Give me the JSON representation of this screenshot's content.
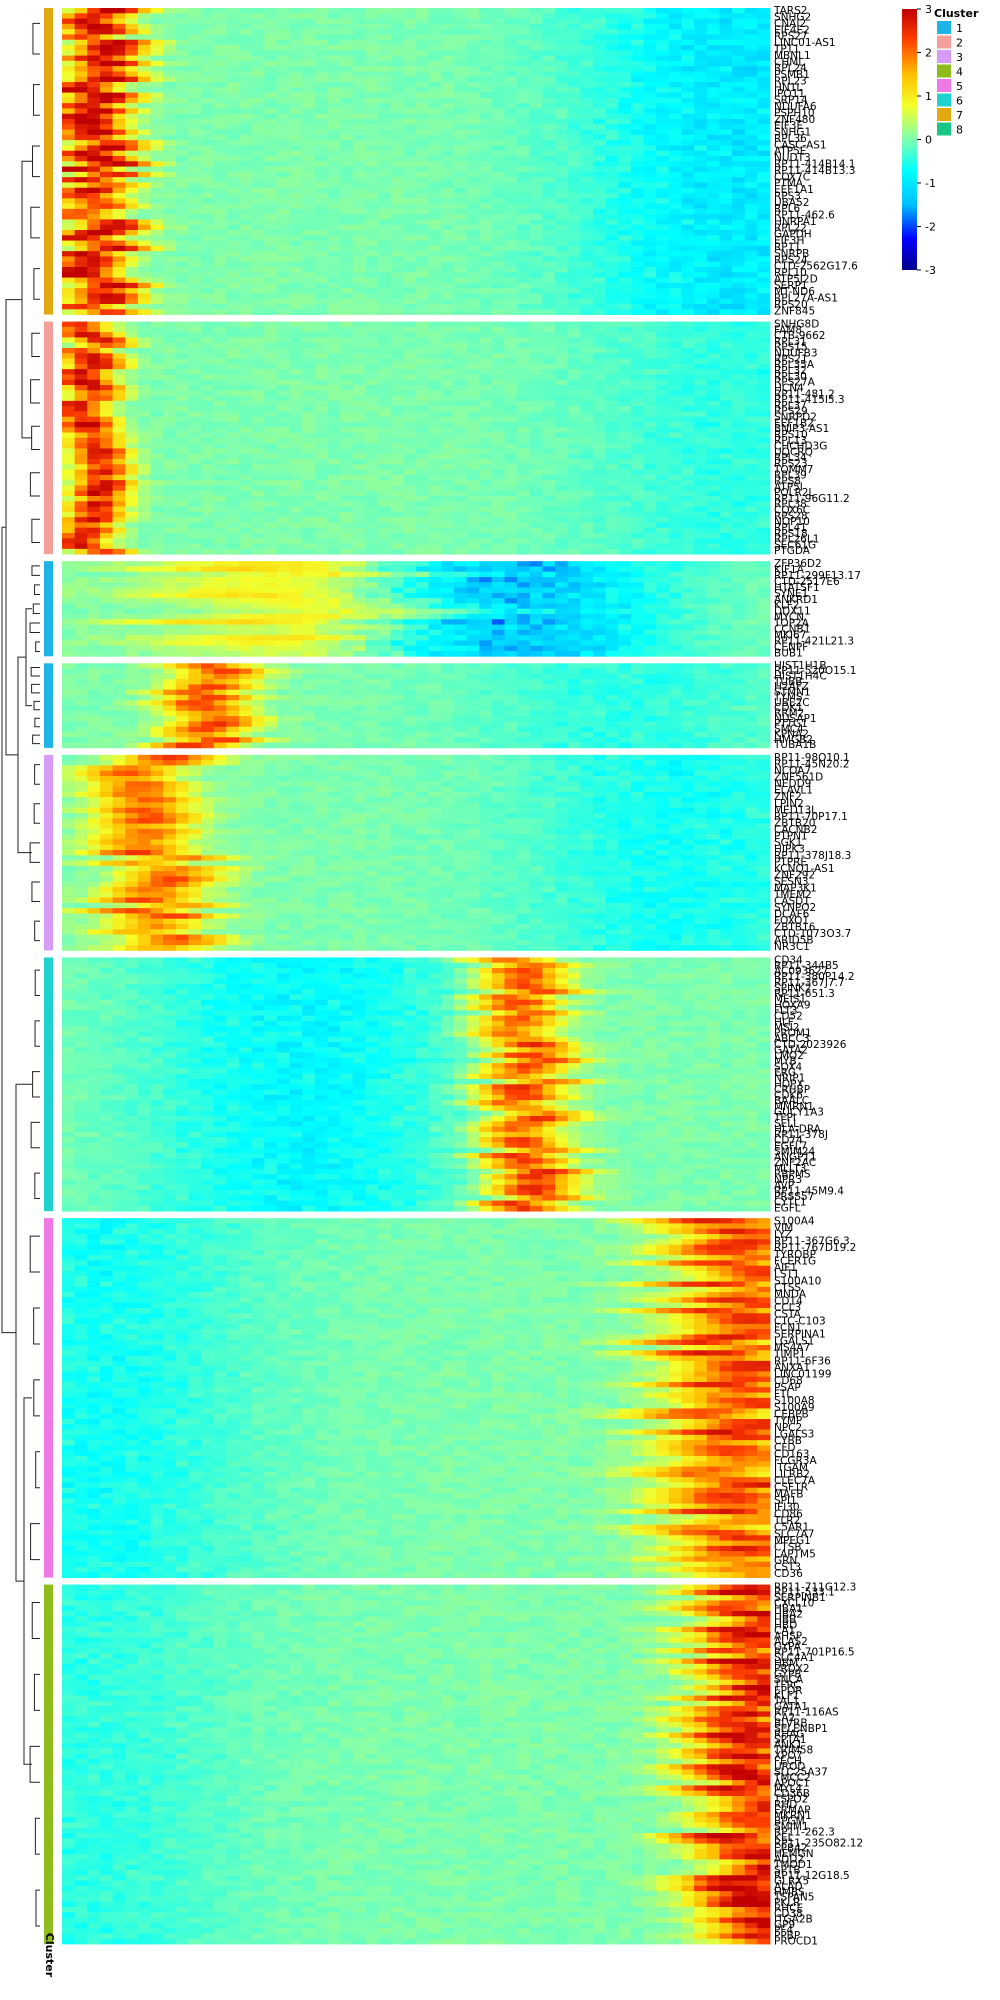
{
  "chart_data": {
    "type": "heatmap",
    "title": "",
    "xlabel": "",
    "ylabel": "",
    "color_scale": {
      "min": -3,
      "max": 3,
      "ticks": [
        3,
        2,
        1,
        0,
        -1,
        -2,
        -3
      ],
      "colors": [
        "#00008b",
        "#0000ff",
        "#00bfff",
        "#00ffff",
        "#7fffb0",
        "#f4ff2a",
        "#ffbf00",
        "#ff4000",
        "#c00000"
      ]
    },
    "legend_title": "Cluster",
    "cluster_axis_label": "Cluster",
    "legend": [
      {
        "cluster": "1",
        "color": "#1fb4e8"
      },
      {
        "cluster": "2",
        "color": "#f59f9a"
      },
      {
        "cluster": "3",
        "color": "#d79af5"
      },
      {
        "cluster": "4",
        "color": "#8fbc1a"
      },
      {
        "cluster": "5",
        "color": "#ef78e5"
      },
      {
        "cluster": "6",
        "color": "#1ed2d0"
      },
      {
        "cluster": "7",
        "color": "#e1a812"
      },
      {
        "cluster": "8",
        "color": "#18c786"
      }
    ],
    "clusters": [
      {
        "cluster": "7",
        "rows": 58,
        "peak_position": 0.05,
        "peak_value": 2.8,
        "spread": 0.05,
        "trough_value": -1.2
      },
      {
        "cluster": "2",
        "rows": 44,
        "peak_position": 0.04,
        "peak_value": 2.7,
        "spread": 0.04,
        "trough_value": -0.6
      },
      {
        "cluster": "1",
        "rows": 18,
        "peak_position": 0.38,
        "peak_value": 1.1,
        "spread": 0.2,
        "trough_value": -1.9
      },
      {
        "cluster": "1",
        "rows": 16,
        "peak_position": 0.2,
        "peak_value": 2.2,
        "spread": 0.06,
        "trough_value": -0.6
      },
      {
        "cluster": "3",
        "rows": 37,
        "peak_position": 0.13,
        "peak_value": 2.0,
        "spread": 0.07,
        "trough_value": -0.8
      },
      {
        "cluster": "6",
        "rows": 48,
        "peak_position": 0.66,
        "peak_value": 2.3,
        "spread": 0.06,
        "trough_value": -1.0
      },
      {
        "cluster": "5",
        "rows": 68,
        "peak_position": 0.95,
        "peak_value": 2.3,
        "spread": 0.1,
        "trough_value": -0.8
      },
      {
        "cluster": "4",
        "rows": 68,
        "peak_position": 0.98,
        "peak_value": 2.8,
        "spread": 0.08,
        "trough_value": -0.6
      }
    ],
    "gene_labels": [
      [
        "TARS2",
        "SNHG2",
        "CNAI2",
        "EIF4E2",
        "RPS27",
        "LINC01-AS1",
        "TPT1",
        "MBNL1",
        "CHML",
        "RPL24",
        "PSMB1",
        "RPL23",
        "HN1L",
        "IPO11",
        "SRP14",
        "NDUFA6",
        "PSPH10",
        "ZNF480",
        "EIF3E",
        "SNHG1",
        "RPL36",
        "CASC-AS1",
        "ATP5E",
        "NUDT3",
        "RP11-414B14.1",
        "RP11-414B13.3",
        "COX7C",
        "PTMA",
        "EEF1A1",
        "RPS3",
        "UBA52",
        "RPL6",
        "RP11-462.6",
        "HNRPA1",
        "RPL22",
        "GAPDH",
        "EIF3H",
        "RP11",
        "SNRPB",
        "RPS24",
        "CTD-2562G17.6",
        "RPL10",
        "ATP5J2D",
        "SERP1",
        "MT-ND6",
        "RPL27A-AS1",
        "RPS20",
        "ZNF845"
      ],
      [
        "SNHG8D",
        "FAM8",
        "CTB-9662",
        "RPL31",
        "RPS15",
        "NDUFB3",
        "RPS21",
        "RPL35A",
        "RPL32",
        "RPL30",
        "RPS27A",
        "HCN4",
        "RP11-481.2",
        "RP11-415I5.3",
        "RPL37",
        "RPS29",
        "SNRPD2",
        "EEF1B2",
        "BNIP3-AS1",
        "RPS10",
        "RPL13",
        "CHCHD3G",
        "UQCRQ",
        "RPL34",
        "RPS23",
        "TOMM7",
        "RPL39",
        "RPS8",
        "ATP5I",
        "POLR2L",
        "RP11-96G11.2",
        "RPL38",
        "COX6C",
        "RPS28",
        "NOP10",
        "RPL41",
        "RPS18",
        "RPL26L1",
        "SEC61G",
        "PTGDA"
      ],
      [
        "ZFP36D2",
        "KIF1A",
        "RP11-299F13.17",
        "CTD-2517E6",
        "HTATSF1",
        "SYNE1",
        "ANKRD1",
        "KLF2",
        "DDX11",
        "MYCN",
        "TOP2A",
        "CCNB1",
        "MKI67",
        "RP11-421L21.3",
        "CENPF",
        "BUB1"
      ],
      [
        "HIST1H1B",
        "RP11-520O15.1",
        "HIST1H4C",
        "TUBB",
        "H2AFZ",
        "STMN1",
        "TYMS",
        "UBE2C",
        "CDK1",
        "RRM2",
        "NUSAP1",
        "PTTG1",
        "SMC4",
        "KPNA2",
        "HMGB2",
        "TUBA1B"
      ],
      [
        "RP11-98O10.1",
        "RP11-45N20.2",
        "NCOA7",
        "ZNF561D",
        "NEDD9",
        "ELAVL1",
        "ZNF2",
        "LPIN2",
        "MED13L",
        "RP11-70P17.1",
        "ZBTB20",
        "CACNB2",
        "PTPN1",
        "SGK1",
        "HIPK3",
        "RP11-378J18.3",
        "PTPRE",
        "KCNQ1-AS1",
        "ZNF292",
        "SESN3",
        "MAP3K1",
        "TMEM2",
        "CASD1",
        "SYNPO2",
        "DCAF6",
        "FOXO1",
        "ZBTB16",
        "CTD-1073O3.7",
        "ARID5B",
        "NR3C1"
      ],
      [
        "CD34",
        "RP11-344B5",
        "AC093627",
        "RP11-380P14.2",
        "RP11-367J7.7",
        "SPINK2",
        "RP11-651.3",
        "MEIS1",
        "HOXA9",
        "FLT3",
        "CD52",
        "HLF",
        "MSI2",
        "PROM1",
        "ABCC3",
        "CTD-2023926",
        "GATA2",
        "LMO2",
        "MYB",
        "SOX4",
        "ERG",
        "NRIP1",
        "HOPX",
        "CRHBP",
        "CDK6",
        "BAALC",
        "MMRN1",
        "GUCY1A3",
        "TFPI",
        "SELL",
        "HLA-DRA",
        "RP11-378J",
        "CD74",
        "EGFL7",
        "SMIM24",
        "ANGPT1",
        "ZNF2AC",
        "MLLT3",
        "RBPMS",
        "NPR3",
        "AVP",
        "RP11-45M9.4",
        "PRSS57",
        "CYTL1",
        "EGFL"
      ],
      [
        "S100A4",
        "VIM",
        "LYZ",
        "RP11-367G6.3",
        "RP11-767D19.2",
        "TYROBP",
        "FCER1G",
        "AIF1",
        "LST1",
        "S100A10",
        "CTSS",
        "MNDA",
        "CD14",
        "CCL3",
        "CSTA",
        "CTC-C103",
        "FCN1",
        "SERPINA1",
        "LGALS1",
        "MS4A7",
        "TIMP1",
        "RP11-6F36",
        "ANXA1",
        "LINC01199",
        "CD68",
        "PSAP",
        "FTL",
        "S100A8",
        "S100A9",
        "CEBPB",
        "TYMP",
        "NPC2",
        "LGALS3",
        "CYBB",
        "CFD",
        "CD163",
        "FCGR3A",
        "ITGAM",
        "LILRB2",
        "CLEC7A",
        "CSF1R",
        "MAFB",
        "SPI1",
        "IFI30",
        "CD86",
        "TLR2",
        "C5AR1",
        "SLC7A7",
        "MPEG1",
        "CTSB",
        "LAPTM5",
        "GRN",
        "CST3",
        "CD36"
      ],
      [
        "RP11-711G12.3",
        "RP11-533.1",
        "SERPINB1",
        "CXCL10",
        "HBA1",
        "HBA2",
        "HBB",
        "HBD",
        "CA1",
        "AHSP",
        "ALAS2",
        "GYPA",
        "RP11-701P16.5",
        "SLC4A1",
        "HBM",
        "PRDX2",
        "GYPB",
        "SNCA",
        "TFRC",
        "EPOR",
        "KLF1",
        "TAL1",
        "GATA1",
        "RP11-116AS",
        "CA2",
        "BLVRB",
        "SELENBP1",
        "RHAG",
        "SPTA1",
        "ANK1",
        "TRIM58",
        "XPO7",
        "FECH",
        "UROD",
        "SLC25A37",
        "TMCC2",
        "APOC1",
        "MYL4",
        "CD36B",
        "TSPO2",
        "RHD",
        "ERMAP",
        "MKRN1",
        "BPGM",
        "SMIM1",
        "RP11-262.3",
        "KEL",
        "RP11-235O82.12",
        "EPB42",
        "HEMGN",
        "ADD2",
        "TMOD1",
        "SPTB",
        "RP11-12G18.5",
        "GLRX5",
        "ALAD",
        "HMBS",
        "TSPAN5",
        "PKLR",
        "RHCE",
        "CD38",
        "ITGA2B",
        "GP9",
        "PF4",
        "PPBP",
        "PROCD1"
      ]
    ]
  }
}
